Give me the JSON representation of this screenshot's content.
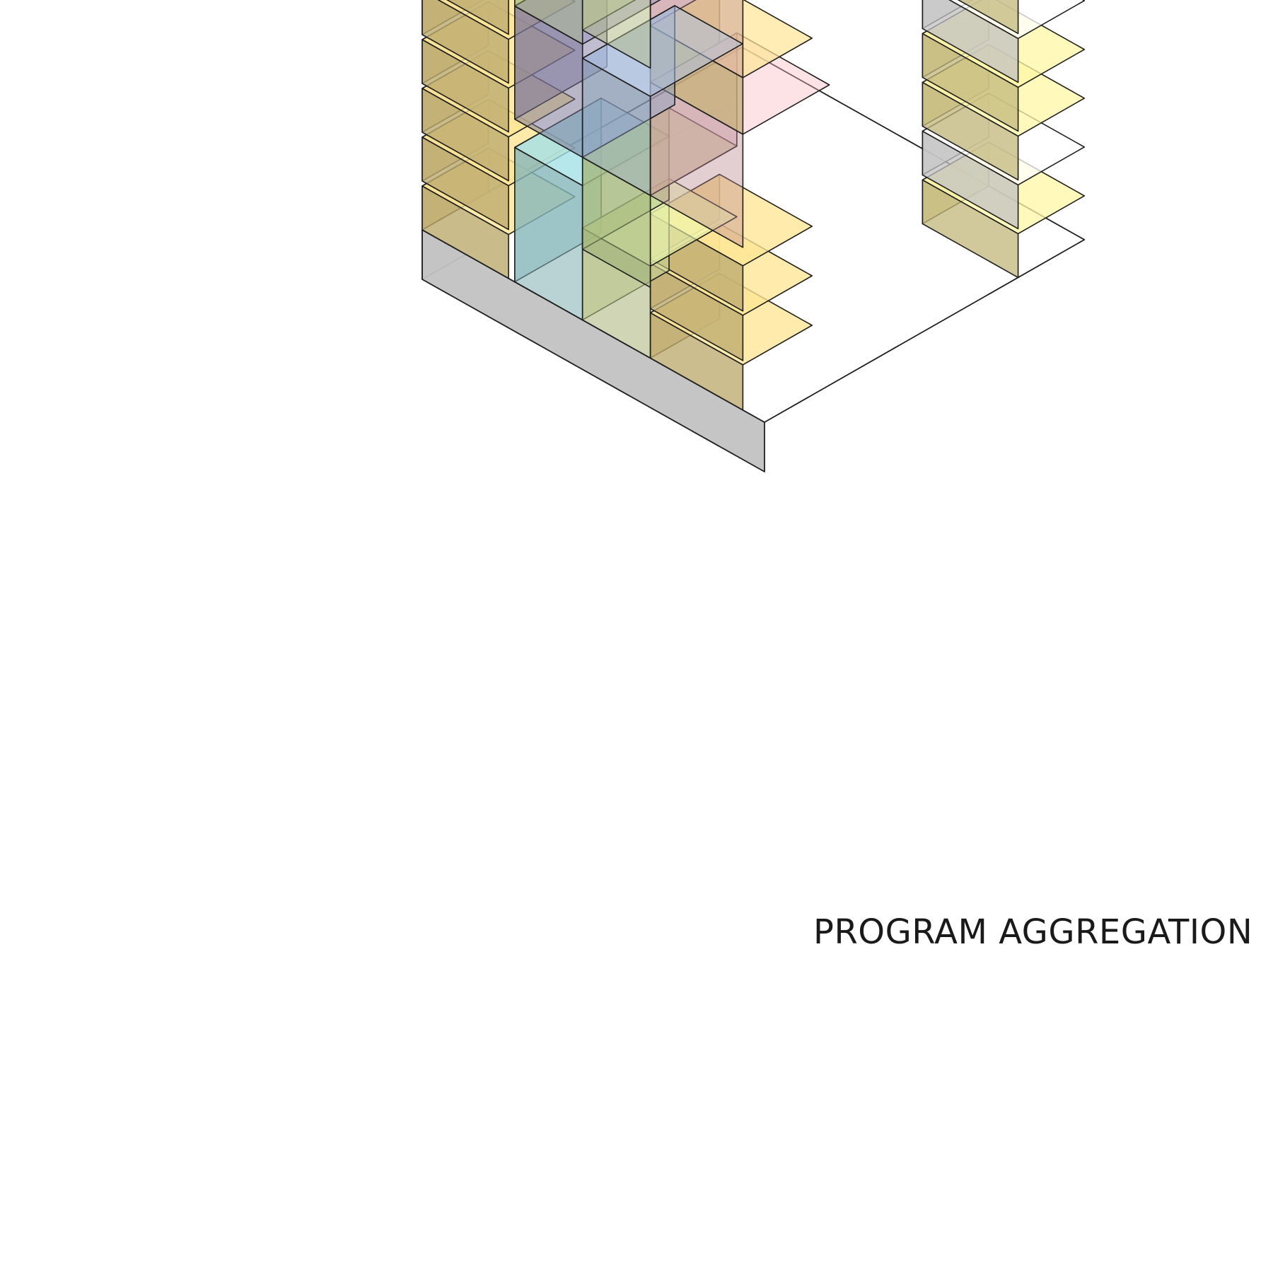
{
  "diagram": {
    "caption": "PROGRAM AGGREGATION",
    "colors": {
      "background": "#ffffff",
      "outline": "#1e1e1e",
      "slab": "#f2f2f2",
      "residential": "#ecd48a",
      "yellow_light": "#f3e59a",
      "beige": "#e6d9b8",
      "pink": "#e8a9b2",
      "blue": "#9fb4d4",
      "purple": "#8f89b3",
      "cyan": "#9fdbe0",
      "green": "#c4dc94",
      "lime": "#dce9a4"
    }
  }
}
